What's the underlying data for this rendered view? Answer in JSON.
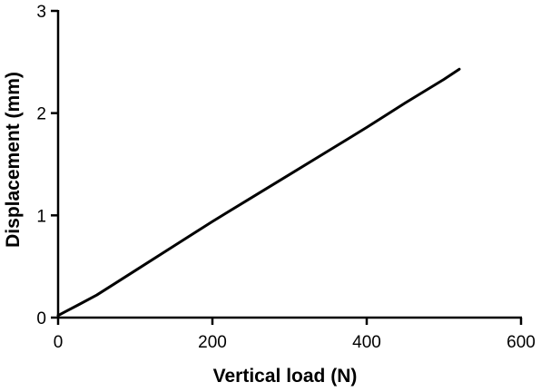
{
  "chart_data": {
    "type": "line",
    "title": "",
    "xlabel": "Vertical load (N)",
    "ylabel": "Displacement (mm)",
    "xlim": [
      0,
      600
    ],
    "ylim": [
      0,
      3
    ],
    "x_ticks": [
      0,
      200,
      400,
      600
    ],
    "y_ticks": [
      0,
      1,
      2,
      3
    ],
    "x_tick_labels": [
      "0",
      "200",
      "400",
      "600"
    ],
    "y_tick_labels": [
      "0",
      "1",
      "2",
      "3"
    ],
    "grid": false,
    "legend": "none",
    "line_color": "#000000",
    "series": [
      {
        "x": [
          0,
          10,
          25,
          50,
          100,
          150,
          200,
          250,
          300,
          350,
          400,
          450,
          500,
          520
        ],
        "y": [
          0.02,
          0.06,
          0.12,
          0.22,
          0.46,
          0.7,
          0.94,
          1.17,
          1.4,
          1.63,
          1.86,
          2.1,
          2.33,
          2.43
        ]
      }
    ]
  }
}
